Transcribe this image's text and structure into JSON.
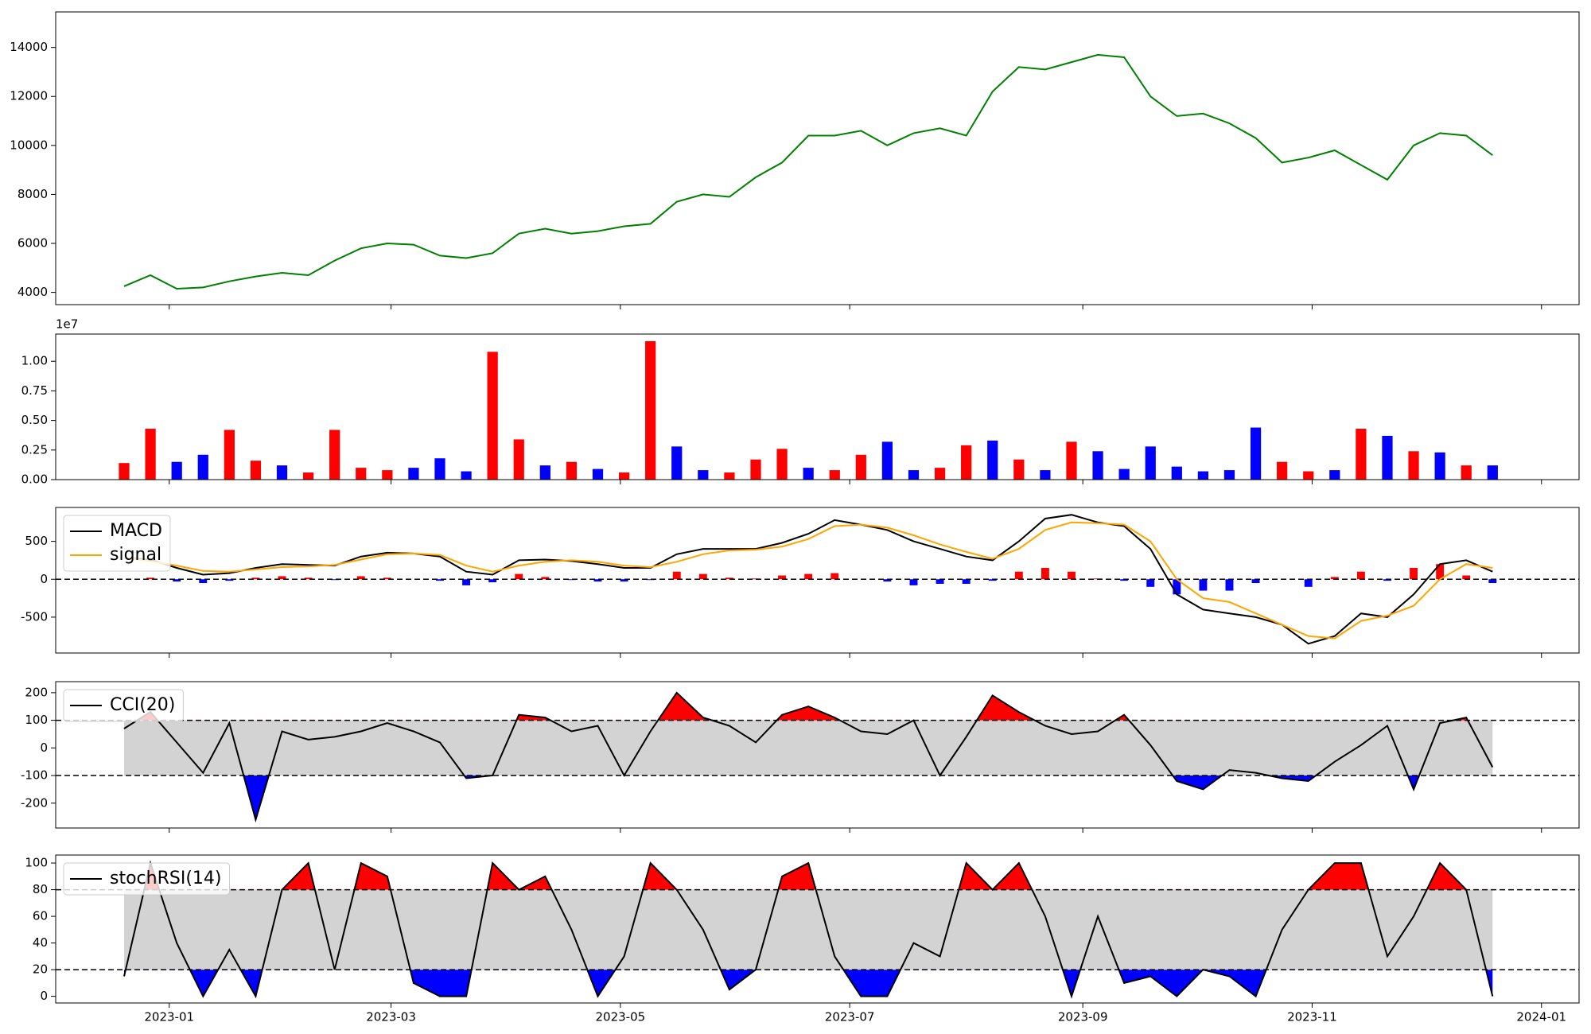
{
  "chart_data": {
    "type": "panels",
    "x": [
      -12,
      -5,
      2,
      9,
      16,
      23,
      30,
      37,
      44,
      51,
      58,
      65,
      72,
      79,
      86,
      93,
      100,
      107,
      114,
      121,
      128,
      135,
      142,
      149,
      156,
      163,
      170,
      177,
      184,
      191,
      198,
      205,
      212,
      219,
      226,
      233,
      240,
      247,
      254,
      261,
      268,
      275,
      282,
      289,
      296,
      303,
      310,
      317,
      324,
      331,
      338,
      345,
      352
    ],
    "xlim": [
      -30.2,
      375
    ],
    "xticks": [
      {
        "value": 0,
        "label": "2023-01"
      },
      {
        "value": 59,
        "label": "2023-03"
      },
      {
        "value": 120,
        "label": "2023-05"
      },
      {
        "value": 181,
        "label": "2023-07"
      },
      {
        "value": 243,
        "label": "2023-09"
      },
      {
        "value": 304,
        "label": "2023-11"
      },
      {
        "value": 365,
        "label": "2024-01"
      }
    ],
    "panels": [
      {
        "type": "line",
        "color": "#008000",
        "ylim": [
          3500,
          15450
        ],
        "yticks": [
          4000,
          6000,
          8000,
          10000,
          12000,
          14000
        ],
        "values": [
          4250,
          4700,
          4150,
          4200,
          4450,
          4650,
          4800,
          4700,
          5300,
          5800,
          6000,
          5950,
          5500,
          5400,
          5600,
          6400,
          6600,
          6400,
          6500,
          6700,
          6800,
          7700,
          8000,
          7900,
          8700,
          9300,
          10400,
          10400,
          10600,
          10000,
          10500,
          10700,
          10400,
          12200,
          13200,
          13100,
          13400,
          13700,
          13600,
          12000,
          11200,
          11300,
          10900,
          10300,
          9300,
          9500,
          9800,
          9200,
          8600,
          10000,
          10500,
          10400,
          9600
        ]
      },
      {
        "type": "bar",
        "ylim": [
          0,
          12300000
        ],
        "offset_label": "1e7",
        "yticks": [
          {
            "value": 0,
            "label": "0.00"
          },
          {
            "value": 2500000,
            "label": "0.25"
          },
          {
            "value": 5000000,
            "label": "0.50"
          },
          {
            "value": 7500000,
            "label": "0.75"
          },
          {
            "value": 10000000,
            "label": "1.00"
          }
        ],
        "values": [
          1400000,
          4300000,
          1500000,
          2100000,
          4200000,
          1600000,
          1200000,
          600000,
          4200000,
          1000000,
          800000,
          1000000,
          1800000,
          700000,
          10800000,
          3400000,
          1200000,
          1500000,
          900000,
          600000,
          11700000,
          2800000,
          800000,
          600000,
          1700000,
          2600000,
          1000000,
          800000,
          2100000,
          3200000,
          800000,
          1000000,
          2900000,
          3300000,
          1700000,
          800000,
          3200000,
          2400000,
          900000,
          2800000,
          1100000,
          700000,
          800000,
          4400000,
          1500000,
          700000,
          800000,
          4300000,
          3700000,
          2400000,
          2300000,
          1200000,
          1200000
        ],
        "colors": [
          "#ff0000",
          "#ff0000",
          "#0000ff",
          "#0000ff",
          "#ff0000",
          "#ff0000",
          "#0000ff",
          "#ff0000",
          "#ff0000",
          "#ff0000",
          "#ff0000",
          "#0000ff",
          "#0000ff",
          "#0000ff",
          "#ff0000",
          "#ff0000",
          "#0000ff",
          "#ff0000",
          "#0000ff",
          "#ff0000",
          "#ff0000",
          "#0000ff",
          "#0000ff",
          "#ff0000",
          "#ff0000",
          "#ff0000",
          "#0000ff",
          "#ff0000",
          "#ff0000",
          "#0000ff",
          "#0000ff",
          "#ff0000",
          "#ff0000",
          "#0000ff",
          "#ff0000",
          "#0000ff",
          "#ff0000",
          "#0000ff",
          "#0000ff",
          "#0000ff",
          "#0000ff",
          "#0000ff",
          "#0000ff",
          "#0000ff",
          "#ff0000",
          "#ff0000",
          "#0000ff",
          "#ff0000",
          "#0000ff",
          "#ff0000",
          "#0000ff",
          "#ff0000",
          "#0000ff"
        ]
      },
      {
        "type": "macd",
        "ylim": [
          -973,
          947
        ],
        "yticks": [
          -500,
          0,
          500
        ],
        "baseline": 0,
        "legend": "upper left",
        "series": [
          {
            "name": "MACD",
            "color": "#000000",
            "values": [
              280,
              260,
              150,
              60,
              80,
              150,
              200,
              190,
              180,
              300,
              350,
              340,
              300,
              100,
              60,
              250,
              260,
              240,
              200,
              150,
              150,
              330,
              400,
              400,
              400,
              480,
              600,
              780,
              720,
              650,
              500,
              400,
              300,
              250,
              500,
              800,
              850,
              750,
              700,
              400,
              -200,
              -400,
              -450,
              -500,
              -600,
              -850,
              -750,
              -450,
              -500,
              -200,
              200,
              250,
              100
            ]
          },
          {
            "name": "signal",
            "color": "#ffa500",
            "values": [
              280,
              240,
              180,
              110,
              100,
              130,
              160,
              170,
              190,
              260,
              330,
              340,
              320,
              180,
              100,
              180,
              230,
              250,
              230,
              180,
              160,
              230,
              330,
              380,
              390,
              430,
              530,
              700,
              720,
              680,
              580,
              460,
              360,
              270,
              400,
              650,
              750,
              740,
              720,
              500,
              0,
              -250,
              -300,
              -450,
              -600,
              -750,
              -780,
              -550,
              -480,
              -350,
              0,
              200,
              150
            ]
          }
        ],
        "histogram": {
          "up_color": "#ff0000",
          "down_color": "#0000ff",
          "values": [
            0,
            20,
            -30,
            -50,
            -20,
            20,
            40,
            20,
            -10,
            40,
            20,
            0,
            -20,
            -80,
            -40,
            70,
            30,
            -10,
            -30,
            -30,
            -10,
            100,
            70,
            20,
            10,
            50,
            70,
            80,
            0,
            -30,
            -80,
            -60,
            -60,
            -20,
            100,
            150,
            100,
            10,
            -20,
            -100,
            -200,
            -150,
            -150,
            -50,
            0,
            -100,
            30,
            100,
            -20,
            150,
            200,
            50,
            -50
          ]
        }
      },
      {
        "type": "oscillator",
        "ylim": [
          -290,
          240
        ],
        "yticks": [
          -200,
          -100,
          0,
          100,
          200
        ],
        "bands": [
          -100,
          100
        ],
        "legend": "upper left",
        "band_color": "#d3d3d3",
        "upper_fill": "#ff0000",
        "lower_fill": "#0000ff",
        "series": [
          {
            "name": "CCI(20)",
            "color": "#000000",
            "values": [
              70,
              130,
              20,
              -90,
              90,
              -260,
              60,
              30,
              40,
              60,
              90,
              60,
              20,
              -110,
              -100,
              120,
              110,
              60,
              80,
              -100,
              60,
              200,
              110,
              80,
              20,
              120,
              150,
              110,
              60,
              50,
              100,
              -100,
              40,
              190,
              130,
              80,
              50,
              60,
              120,
              10,
              -120,
              -150,
              -80,
              -90,
              -110,
              -120,
              -50,
              10,
              80,
              -150,
              90,
              110,
              -70
            ]
          }
        ]
      },
      {
        "type": "oscillator",
        "ylim": [
          -5,
          106
        ],
        "yticks": [
          0,
          20,
          40,
          60,
          80,
          100
        ],
        "bands": [
          20,
          80
        ],
        "legend": "upper left",
        "band_color": "#d3d3d3",
        "upper_fill": "#ff0000",
        "lower_fill": "#0000ff",
        "series": [
          {
            "name": "stochRSI(14)",
            "color": "#000000",
            "values": [
              15,
              100,
              40,
              0,
              35,
              0,
              80,
              100,
              20,
              100,
              90,
              10,
              0,
              0,
              100,
              80,
              90,
              50,
              0,
              30,
              100,
              80,
              50,
              5,
              20,
              90,
              100,
              30,
              0,
              0,
              40,
              30,
              100,
              80,
              100,
              60,
              0,
              60,
              10,
              15,
              0,
              20,
              15,
              0,
              50,
              80,
              100,
              100,
              30,
              60,
              100,
              80,
              0
            ]
          }
        ]
      }
    ]
  }
}
